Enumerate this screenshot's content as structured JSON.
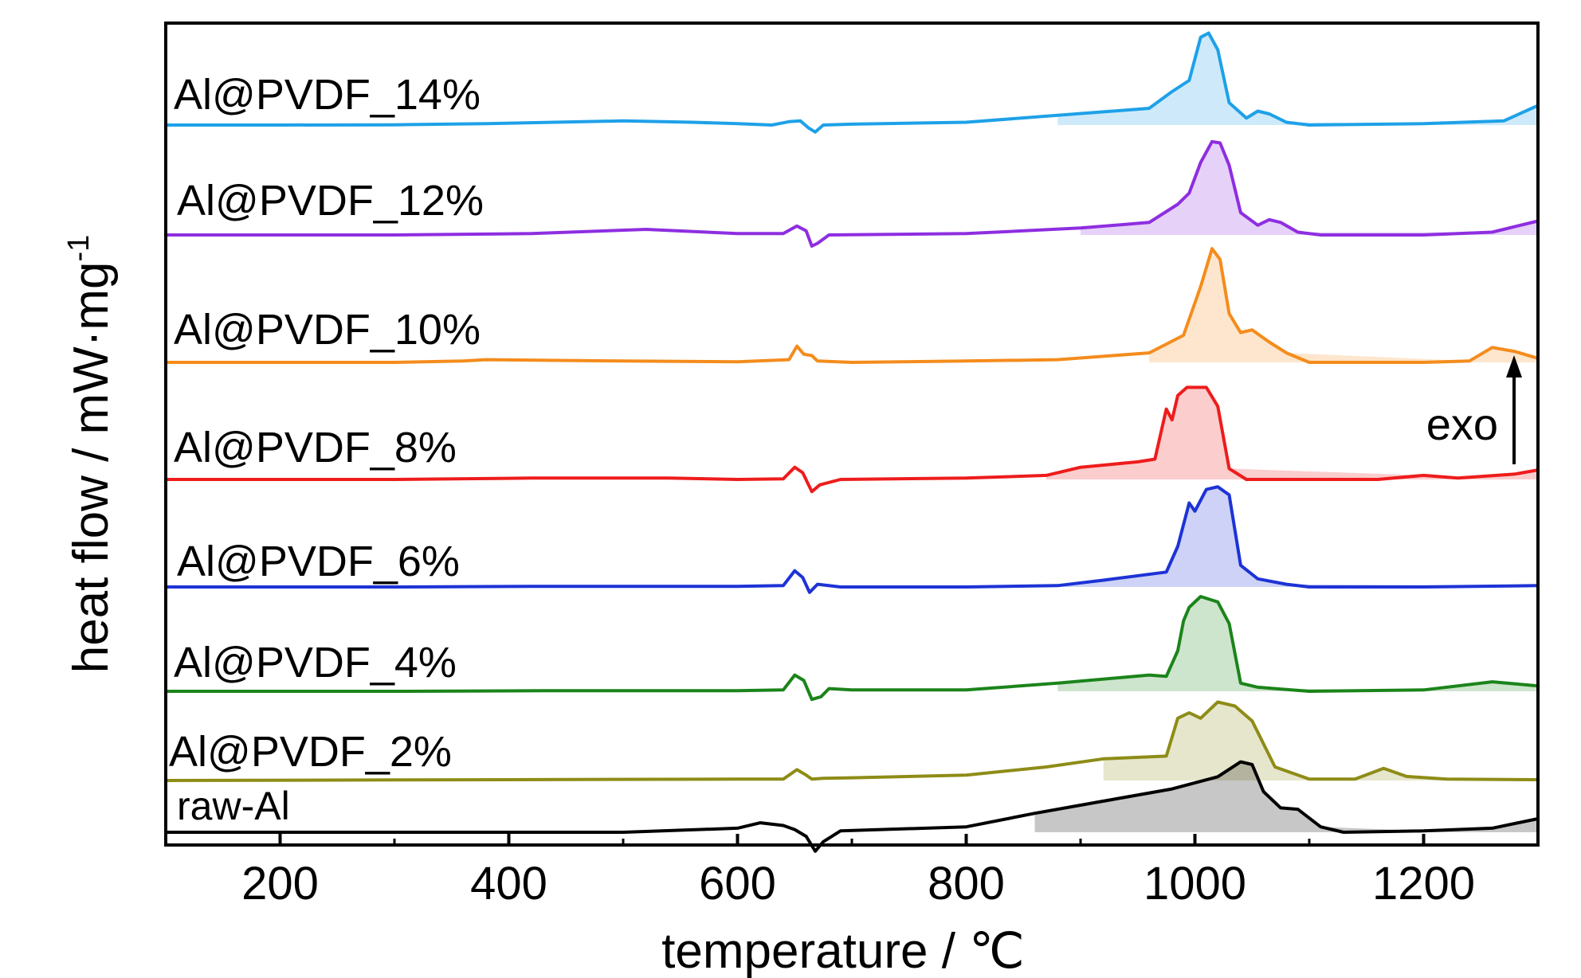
{
  "chart_data": {
    "type": "line",
    "xlabel": "temperature / ℃",
    "ylabel": "heat flow / mW·mg",
    "ylabel_superscript": "-1",
    "xlim": [
      100,
      1300
    ],
    "x_ticks": [
      200,
      400,
      600,
      800,
      1000,
      1200
    ],
    "x_tick_labels": [
      "200",
      "400",
      "600",
      "800",
      "1000",
      "1200"
    ],
    "grid": false,
    "annotation": {
      "text": "exo",
      "arrow_direction": "up"
    },
    "stacked_offset_curves": true,
    "series": [
      {
        "name": "Al@PVDF_14%",
        "color": "#1ea1e8",
        "points": [
          [
            100,
            0
          ],
          [
            200,
            0
          ],
          [
            300,
            0.01
          ],
          [
            380,
            0.05
          ],
          [
            500,
            0.15
          ],
          [
            560,
            0.1
          ],
          [
            600,
            0.05
          ],
          [
            630,
            0
          ],
          [
            645,
            0.12
          ],
          [
            655,
            0.15
          ],
          [
            662,
            -0.1
          ],
          [
            668,
            -0.25
          ],
          [
            675,
            0
          ],
          [
            700,
            0.03
          ],
          [
            800,
            0.1
          ],
          [
            880,
            0.35
          ],
          [
            960,
            0.6
          ],
          [
            980,
            1.2
          ],
          [
            995,
            1.6
          ],
          [
            1005,
            3.15
          ],
          [
            1012,
            3.3
          ],
          [
            1020,
            2.7
          ],
          [
            1030,
            0.8
          ],
          [
            1045,
            0.25
          ],
          [
            1055,
            0.5
          ],
          [
            1065,
            0.4
          ],
          [
            1080,
            0.1
          ],
          [
            1100,
            0
          ],
          [
            1200,
            0.05
          ],
          [
            1270,
            0.15
          ],
          [
            1300,
            0.7
          ]
        ]
      },
      {
        "name": "Al@PVDF_12%",
        "color": "#8e2ee0",
        "points": [
          [
            100,
            0
          ],
          [
            300,
            0
          ],
          [
            420,
            0.05
          ],
          [
            520,
            0.2
          ],
          [
            600,
            0.05
          ],
          [
            640,
            0.05
          ],
          [
            652,
            0.32
          ],
          [
            660,
            0.15
          ],
          [
            665,
            -0.4
          ],
          [
            670,
            -0.3
          ],
          [
            680,
            0
          ],
          [
            800,
            0.05
          ],
          [
            900,
            0.25
          ],
          [
            960,
            0.45
          ],
          [
            985,
            1.1
          ],
          [
            995,
            1.5
          ],
          [
            1005,
            2.6
          ],
          [
            1015,
            3.35
          ],
          [
            1022,
            3.3
          ],
          [
            1030,
            2.5
          ],
          [
            1040,
            0.8
          ],
          [
            1055,
            0.35
          ],
          [
            1065,
            0.55
          ],
          [
            1075,
            0.45
          ],
          [
            1090,
            0.1
          ],
          [
            1110,
            0
          ],
          [
            1200,
            0
          ],
          [
            1260,
            0.1
          ],
          [
            1300,
            0.5
          ]
        ]
      },
      {
        "name": "Al@PVDF_10%",
        "color": "#f48c1c",
        "points": [
          [
            100,
            0
          ],
          [
            300,
            0
          ],
          [
            360,
            0.05
          ],
          [
            380,
            0.1
          ],
          [
            500,
            0.05
          ],
          [
            600,
            0.02
          ],
          [
            645,
            0.1
          ],
          [
            652,
            0.6
          ],
          [
            658,
            0.3
          ],
          [
            665,
            0.25
          ],
          [
            670,
            0.05
          ],
          [
            700,
            0
          ],
          [
            800,
            0.05
          ],
          [
            880,
            0.1
          ],
          [
            960,
            0.35
          ],
          [
            990,
            1.0
          ],
          [
            1005,
            2.8
          ],
          [
            1015,
            4.2
          ],
          [
            1022,
            3.8
          ],
          [
            1030,
            1.8
          ],
          [
            1040,
            1.1
          ],
          [
            1050,
            1.2
          ],
          [
            1065,
            0.75
          ],
          [
            1080,
            0.35
          ],
          [
            1100,
            0
          ],
          [
            1200,
            0
          ],
          [
            1240,
            0.05
          ],
          [
            1260,
            0.55
          ],
          [
            1280,
            0.4
          ],
          [
            1300,
            0.15
          ]
        ]
      },
      {
        "name": "Al@PVDF_8%",
        "color": "#ee1c1c",
        "points": [
          [
            100,
            0
          ],
          [
            300,
            0
          ],
          [
            420,
            0.05
          ],
          [
            540,
            0.05
          ],
          [
            600,
            0
          ],
          [
            640,
            0.02
          ],
          [
            650,
            0.45
          ],
          [
            657,
            0.25
          ],
          [
            665,
            -0.45
          ],
          [
            672,
            -0.2
          ],
          [
            690,
            0
          ],
          [
            800,
            0.05
          ],
          [
            870,
            0.15
          ],
          [
            900,
            0.45
          ],
          [
            950,
            0.65
          ],
          [
            965,
            0.75
          ],
          [
            975,
            2.6
          ],
          [
            980,
            2.2
          ],
          [
            985,
            3.1
          ],
          [
            993,
            3.4
          ],
          [
            1010,
            3.4
          ],
          [
            1020,
            2.7
          ],
          [
            1030,
            0.4
          ],
          [
            1045,
            0
          ],
          [
            1100,
            0
          ],
          [
            1160,
            0
          ],
          [
            1200,
            0.15
          ],
          [
            1230,
            0.05
          ],
          [
            1280,
            0.2
          ],
          [
            1300,
            0.35
          ]
        ]
      },
      {
        "name": "Al@PVDF_6%",
        "color": "#1d33d6",
        "points": [
          [
            100,
            0
          ],
          [
            300,
            0
          ],
          [
            420,
            0.02
          ],
          [
            550,
            0.02
          ],
          [
            600,
            0.02
          ],
          [
            640,
            0.05
          ],
          [
            650,
            0.6
          ],
          [
            657,
            0.35
          ],
          [
            663,
            -0.2
          ],
          [
            670,
            0.1
          ],
          [
            690,
            0
          ],
          [
            800,
            0
          ],
          [
            880,
            0.05
          ],
          [
            920,
            0.25
          ],
          [
            975,
            0.55
          ],
          [
            985,
            1.5
          ],
          [
            995,
            3.1
          ],
          [
            1000,
            2.8
          ],
          [
            1010,
            3.6
          ],
          [
            1020,
            3.7
          ],
          [
            1030,
            3.4
          ],
          [
            1040,
            0.8
          ],
          [
            1055,
            0.3
          ],
          [
            1080,
            0.1
          ],
          [
            1100,
            0
          ],
          [
            1200,
            0
          ],
          [
            1300,
            0.05
          ]
        ]
      },
      {
        "name": "Al@PVDF_4%",
        "color": "#1b841a",
        "points": [
          [
            100,
            0
          ],
          [
            300,
            0
          ],
          [
            430,
            0.02
          ],
          [
            600,
            0.02
          ],
          [
            640,
            0.05
          ],
          [
            650,
            0.6
          ],
          [
            658,
            0.4
          ],
          [
            665,
            -0.3
          ],
          [
            673,
            -0.2
          ],
          [
            680,
            0.1
          ],
          [
            700,
            0.05
          ],
          [
            800,
            0.05
          ],
          [
            880,
            0.3
          ],
          [
            960,
            0.6
          ],
          [
            975,
            0.55
          ],
          [
            985,
            1.5
          ],
          [
            990,
            2.6
          ],
          [
            995,
            3.1
          ],
          [
            1005,
            3.5
          ],
          [
            1020,
            3.3
          ],
          [
            1030,
            2.5
          ],
          [
            1040,
            0.3
          ],
          [
            1055,
            0.15
          ],
          [
            1070,
            0.1
          ],
          [
            1100,
            0
          ],
          [
            1200,
            0.05
          ],
          [
            1260,
            0.35
          ],
          [
            1300,
            0.2
          ]
        ]
      },
      {
        "name": "Al@PVDF_2%",
        "color": "#8e8c17",
        "points": [
          [
            100,
            0
          ],
          [
            300,
            0.02
          ],
          [
            600,
            0.05
          ],
          [
            640,
            0.05
          ],
          [
            652,
            0.4
          ],
          [
            660,
            0.2
          ],
          [
            665,
            0.05
          ],
          [
            675,
            0.08
          ],
          [
            700,
            0.1
          ],
          [
            800,
            0.2
          ],
          [
            870,
            0.5
          ],
          [
            920,
            0.8
          ],
          [
            975,
            0.9
          ],
          [
            985,
            2.3
          ],
          [
            995,
            2.5
          ],
          [
            1005,
            2.3
          ],
          [
            1020,
            2.9
          ],
          [
            1035,
            2.75
          ],
          [
            1050,
            2.2
          ],
          [
            1070,
            0.5
          ],
          [
            1100,
            0.05
          ],
          [
            1140,
            0.05
          ],
          [
            1165,
            0.45
          ],
          [
            1185,
            0.15
          ],
          [
            1220,
            0.05
          ],
          [
            1300,
            0.03
          ]
        ]
      },
      {
        "name": "raw-Al",
        "color": "#000000",
        "points": [
          [
            100,
            0
          ],
          [
            200,
            0
          ],
          [
            300,
            0
          ],
          [
            500,
            0
          ],
          [
            600,
            0.15
          ],
          [
            620,
            0.35
          ],
          [
            640,
            0.25
          ],
          [
            650,
            0.1
          ],
          [
            660,
            -0.15
          ],
          [
            668,
            -0.7
          ],
          [
            675,
            -0.35
          ],
          [
            690,
            0.05
          ],
          [
            800,
            0.2
          ],
          [
            860,
            0.7
          ],
          [
            920,
            1.15
          ],
          [
            980,
            1.6
          ],
          [
            1020,
            2.05
          ],
          [
            1040,
            2.6
          ],
          [
            1050,
            2.5
          ],
          [
            1060,
            1.5
          ],
          [
            1075,
            0.9
          ],
          [
            1090,
            0.85
          ],
          [
            1110,
            0.2
          ],
          [
            1130,
            0
          ],
          [
            1200,
            0.05
          ],
          [
            1260,
            0.15
          ],
          [
            1300,
            0.5
          ]
        ]
      }
    ]
  }
}
